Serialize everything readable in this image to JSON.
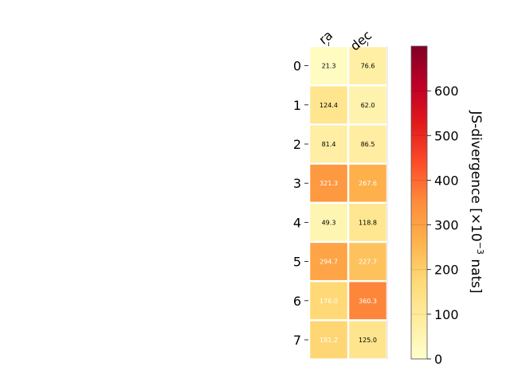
{
  "chart_data": {
    "type": "heatmap",
    "title": "",
    "columns": [
      "ra",
      "dec"
    ],
    "rows": [
      "0",
      "1",
      "2",
      "3",
      "4",
      "5",
      "6",
      "7"
    ],
    "values": [
      [
        21.3,
        76.6
      ],
      [
        124.4,
        62.0
      ],
      [
        81.4,
        86.5
      ],
      [
        321.3,
        267.6
      ],
      [
        49.3,
        118.8
      ],
      [
        294.7,
        227.7
      ],
      [
        176.0,
        360.3
      ],
      [
        181.2,
        125.0
      ]
    ],
    "value_labels": [
      [
        "21.3",
        "76.6"
      ],
      [
        "124.4",
        "62.0"
      ],
      [
        "81.4",
        "86.5"
      ],
      [
        "321.3",
        "267.6"
      ],
      [
        "49.3",
        "118.8"
      ],
      [
        "294.7",
        "227.7"
      ],
      [
        "176.0",
        "360.3"
      ],
      [
        "181.2",
        "125.0"
      ]
    ],
    "colorbar": {
      "label_prefix": "JS-divergence [×10",
      "label_exponent": "−3",
      "label_suffix": " nats]",
      "vmin": 0,
      "vmax": 700,
      "ticks": [
        0,
        100,
        200,
        300,
        400,
        500,
        600
      ],
      "colormap": "YlOrRd",
      "colors": [
        "#ffffcc",
        "#ffeda0",
        "#fed976",
        "#feb24c",
        "#fd8d3c",
        "#fc4e2a",
        "#e31a1c",
        "#bd0026",
        "#800026"
      ]
    },
    "cell_text_colors": {
      "dark": "#000000",
      "light": "#ffffff"
    },
    "grid": false,
    "legend": "colorbar-right"
  }
}
